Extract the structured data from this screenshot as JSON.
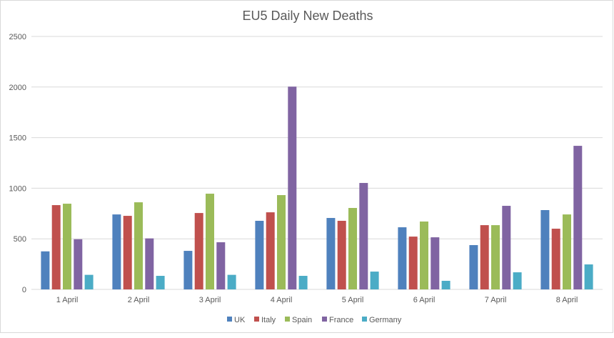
{
  "chart_data": {
    "type": "bar",
    "title": "EU5 Daily New Deaths",
    "xlabel": "",
    "ylabel": "",
    "ylim": [
      0,
      2500
    ],
    "yticks": [
      0,
      500,
      1000,
      1500,
      2000,
      2500
    ],
    "grid": true,
    "legend_position": "bottom",
    "categories": [
      "1 April",
      "2 April",
      "3 April",
      "4 April",
      "5 April",
      "6 April",
      "7 April",
      "8 April"
    ],
    "series": [
      {
        "name": "UK",
        "color": "#4F81BD",
        "values": [
          376,
          741,
          381,
          678,
          706,
          614,
          438,
          784
        ]
      },
      {
        "name": "Italy",
        "color": "#C0504D",
        "values": [
          833,
          727,
          755,
          762,
          678,
          522,
          635,
          600
        ]
      },
      {
        "name": "Spain",
        "color": "#9BBB59",
        "values": [
          847,
          861,
          946,
          932,
          805,
          671,
          635,
          741
        ]
      },
      {
        "name": "France",
        "color": "#8064A2",
        "values": [
          496,
          504,
          466,
          2004,
          1052,
          515,
          826,
          1419
        ]
      },
      {
        "name": "Germany",
        "color": "#4BACC6",
        "values": [
          144,
          134,
          144,
          134,
          176,
          85,
          169,
          247
        ]
      }
    ]
  }
}
